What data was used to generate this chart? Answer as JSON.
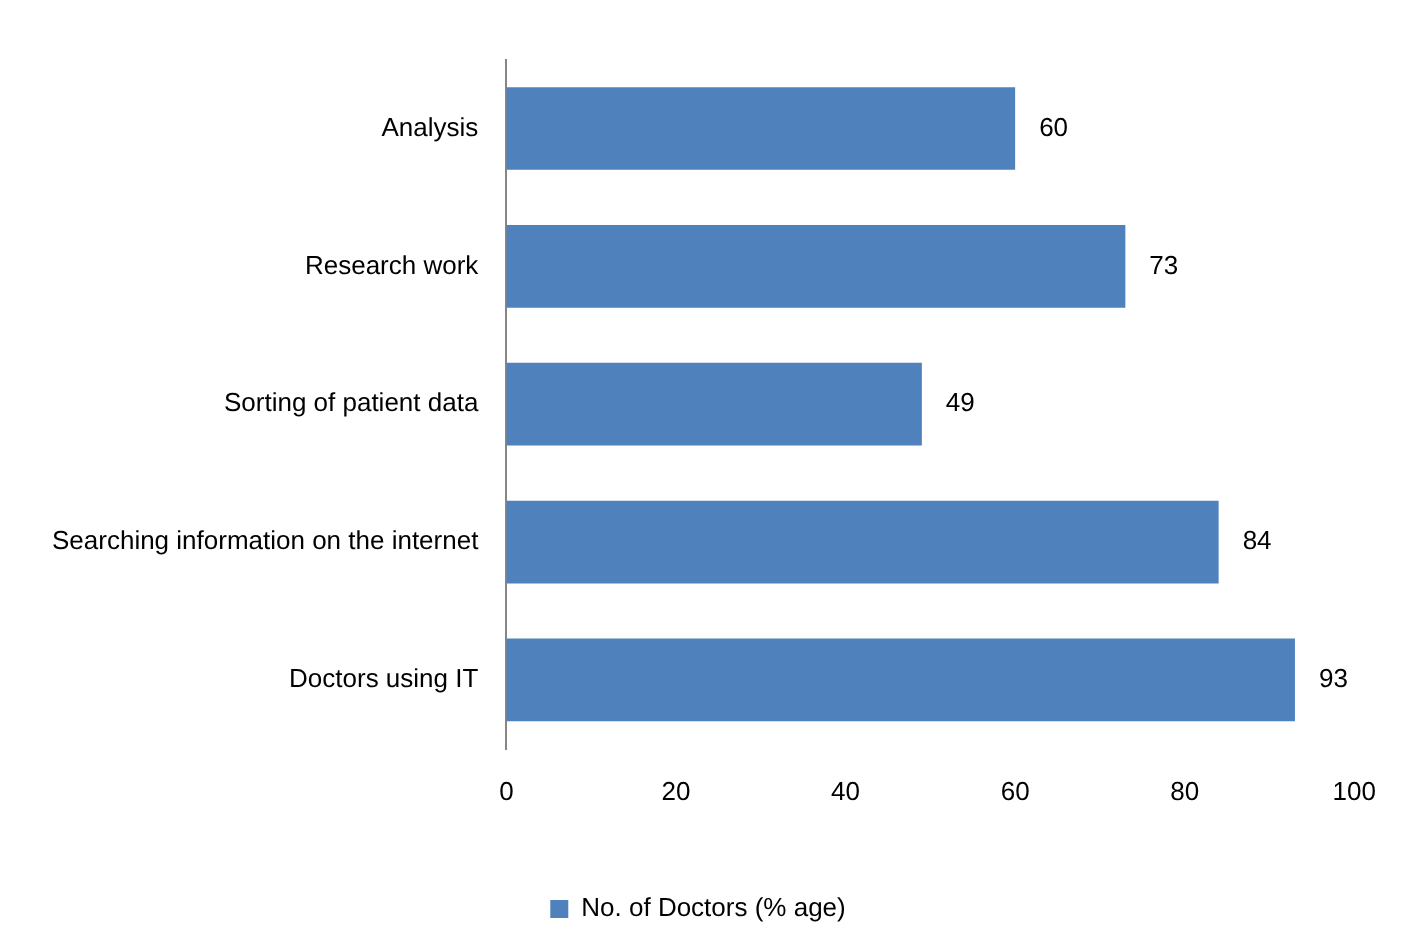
{
  "chart_data": {
    "type": "bar",
    "orientation": "horizontal",
    "categories": [
      "Analysis",
      "Research work",
      "Sorting of patient data",
      "Searching information on the internet",
      "Doctors using IT"
    ],
    "series": [
      {
        "name": "No. of Doctors (% age)",
        "color": "#4f81bd",
        "values": [
          60,
          73,
          49,
          84,
          93
        ]
      }
    ],
    "xlim": [
      0,
      100
    ],
    "xticks": [
      0,
      20,
      40,
      60,
      80,
      100
    ],
    "grid": false,
    "legend": "bottom",
    "data_labels": true
  }
}
